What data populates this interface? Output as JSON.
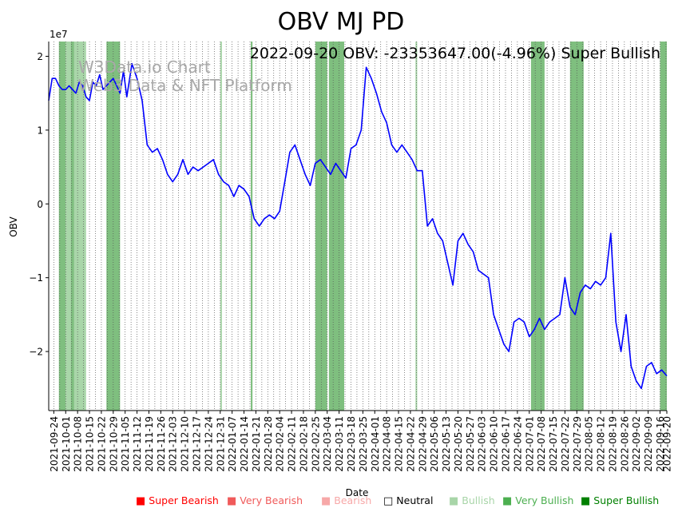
{
  "chart_data": {
    "type": "line",
    "title": "OBV MJ PD",
    "annotation": "2022-09-20 OBV: -23353647.00(-4.96%) Super Bullish",
    "watermark_line1": "W3Data.io Chart",
    "watermark_line2": "Web3 Data & NFT Platform",
    "xlabel": "Date",
    "ylabel": "OBV",
    "y_exponent_label": "1e7",
    "x_range": [
      "2021-09-21",
      "2022-09-20"
    ],
    "ylim": [
      -2.8,
      2.2
    ],
    "y_unit_scale": 10000000,
    "y_ticks": [
      -2,
      -1,
      0,
      1,
      2
    ],
    "y_tick_labels": [
      "−2",
      "−1",
      "0",
      "1",
      "2"
    ],
    "x_tick_labels": [
      "2021-09-24",
      "2021-10-01",
      "2021-10-08",
      "2021-10-15",
      "2021-10-22",
      "2021-10-29",
      "2021-11-05",
      "2021-11-12",
      "2021-11-19",
      "2021-11-26",
      "2021-12-03",
      "2021-12-10",
      "2021-12-17",
      "2021-12-24",
      "2021-12-31",
      "2022-01-07",
      "2022-01-14",
      "2022-01-21",
      "2022-01-28",
      "2022-02-04",
      "2022-02-11",
      "2022-02-18",
      "2022-02-25",
      "2022-03-04",
      "2022-03-11",
      "2022-03-18",
      "2022-03-25",
      "2022-04-01",
      "2022-04-08",
      "2022-04-15",
      "2022-04-22",
      "2022-04-29",
      "2022-05-06",
      "2022-05-13",
      "2022-05-20",
      "2022-05-27",
      "2022-06-03",
      "2022-06-10",
      "2022-06-17",
      "2022-06-24",
      "2022-07-01",
      "2022-07-08",
      "2022-07-15",
      "2022-07-22",
      "2022-07-29",
      "2022-08-05",
      "2022-08-12",
      "2022-08-19",
      "2022-08-26",
      "2022-09-02",
      "2022-09-09",
      "2022-09-16",
      "2022-09-20"
    ],
    "signal_bands": [
      {
        "start": "2021-09-27",
        "end": "2021-10-01",
        "signal": "Very Bullish"
      },
      {
        "start": "2021-10-01",
        "end": "2021-10-04",
        "signal": "Bullish"
      },
      {
        "start": "2021-10-04",
        "end": "2021-10-06",
        "signal": "Very Bullish"
      },
      {
        "start": "2021-10-06",
        "end": "2021-10-13",
        "signal": "Bullish"
      },
      {
        "start": "2021-10-25",
        "end": "2021-11-02",
        "signal": "Very Bullish"
      },
      {
        "start": "2021-12-31",
        "end": "2022-01-01",
        "signal": "Bullish"
      },
      {
        "start": "2022-01-18",
        "end": "2022-01-19",
        "signal": "Very Bullish"
      },
      {
        "start": "2022-02-25",
        "end": "2022-03-04",
        "signal": "Very Bullish"
      },
      {
        "start": "2022-03-05",
        "end": "2022-03-14",
        "signal": "Very Bullish"
      },
      {
        "start": "2022-04-25",
        "end": "2022-04-26",
        "signal": "Bullish"
      },
      {
        "start": "2022-07-02",
        "end": "2022-07-10",
        "signal": "Very Bullish"
      },
      {
        "start": "2022-07-25",
        "end": "2022-08-02",
        "signal": "Very Bullish"
      },
      {
        "start": "2022-09-16",
        "end": "2022-09-20",
        "signal": "Very Bullish"
      }
    ],
    "series": [
      {
        "name": "OBV",
        "color": "#0000ff",
        "dates": [
          "2021-09-21",
          "2021-09-23",
          "2021-09-25",
          "2021-09-27",
          "2021-09-29",
          "2021-10-01",
          "2021-10-03",
          "2021-10-05",
          "2021-10-07",
          "2021-10-09",
          "2021-10-11",
          "2021-10-13",
          "2021-10-15",
          "2021-10-17",
          "2021-10-19",
          "2021-10-21",
          "2021-10-23",
          "2021-10-25",
          "2021-10-27",
          "2021-10-29",
          "2021-10-31",
          "2021-11-02",
          "2021-11-04",
          "2021-11-06",
          "2021-11-09",
          "2021-11-12",
          "2021-11-15",
          "2021-11-18",
          "2021-11-21",
          "2021-11-24",
          "2021-11-27",
          "2021-11-30",
          "2021-12-03",
          "2021-12-06",
          "2021-12-09",
          "2021-12-12",
          "2021-12-15",
          "2021-12-18",
          "2021-12-21",
          "2021-12-24",
          "2021-12-27",
          "2021-12-30",
          "2022-01-02",
          "2022-01-05",
          "2022-01-08",
          "2022-01-11",
          "2022-01-14",
          "2022-01-17",
          "2022-01-20",
          "2022-01-23",
          "2022-01-26",
          "2022-01-29",
          "2022-02-01",
          "2022-02-04",
          "2022-02-07",
          "2022-02-10",
          "2022-02-13",
          "2022-02-16",
          "2022-02-19",
          "2022-02-22",
          "2022-02-25",
          "2022-02-28",
          "2022-03-03",
          "2022-03-06",
          "2022-03-09",
          "2022-03-12",
          "2022-03-15",
          "2022-03-18",
          "2022-03-21",
          "2022-03-24",
          "2022-03-27",
          "2022-03-30",
          "2022-04-02",
          "2022-04-05",
          "2022-04-08",
          "2022-04-11",
          "2022-04-14",
          "2022-04-17",
          "2022-04-20",
          "2022-04-23",
          "2022-04-26",
          "2022-04-29",
          "2022-05-02",
          "2022-05-05",
          "2022-05-08",
          "2022-05-11",
          "2022-05-14",
          "2022-05-17",
          "2022-05-20",
          "2022-05-23",
          "2022-05-26",
          "2022-05-29",
          "2022-06-01",
          "2022-06-04",
          "2022-06-07",
          "2022-06-10",
          "2022-06-13",
          "2022-06-16",
          "2022-06-19",
          "2022-06-22",
          "2022-06-25",
          "2022-06-28",
          "2022-07-01",
          "2022-07-04",
          "2022-07-07",
          "2022-07-10",
          "2022-07-13",
          "2022-07-16",
          "2022-07-19",
          "2022-07-22",
          "2022-07-25",
          "2022-07-28",
          "2022-07-31",
          "2022-08-03",
          "2022-08-06",
          "2022-08-09",
          "2022-08-12",
          "2022-08-15",
          "2022-08-18",
          "2022-08-21",
          "2022-08-24",
          "2022-08-27",
          "2022-08-30",
          "2022-09-02",
          "2022-09-05",
          "2022-09-08",
          "2022-09-11",
          "2022-09-14",
          "2022-09-17",
          "2022-09-20"
        ],
        "values": [
          1.4,
          1.7,
          1.7,
          1.6,
          1.55,
          1.55,
          1.6,
          1.55,
          1.5,
          1.65,
          1.6,
          1.45,
          1.4,
          1.65,
          1.6,
          1.75,
          1.55,
          1.6,
          1.65,
          1.7,
          1.6,
          1.5,
          1.8,
          1.45,
          1.9,
          1.7,
          1.4,
          0.8,
          0.7,
          0.75,
          0.6,
          0.4,
          0.3,
          0.4,
          0.6,
          0.4,
          0.5,
          0.45,
          0.5,
          0.55,
          0.6,
          0.4,
          0.3,
          0.25,
          0.1,
          0.25,
          0.2,
          0.1,
          -0.2,
          -0.3,
          -0.2,
          -0.15,
          -0.2,
          -0.1,
          0.3,
          0.7,
          0.8,
          0.6,
          0.4,
          0.25,
          0.55,
          0.6,
          0.5,
          0.4,
          0.55,
          0.45,
          0.35,
          0.75,
          0.8,
          1.0,
          1.85,
          1.7,
          1.5,
          1.25,
          1.1,
          0.8,
          0.7,
          0.8,
          0.7,
          0.6,
          0.45,
          0.45,
          -0.3,
          -0.2,
          -0.4,
          -0.5,
          -0.8,
          -1.1,
          -0.5,
          -0.4,
          -0.55,
          -0.65,
          -0.9,
          -0.95,
          -1.0,
          -1.5,
          -1.7,
          -1.9,
          -2.0,
          -1.6,
          -1.55,
          -1.6,
          -1.8,
          -1.7,
          -1.55,
          -1.7,
          -1.6,
          -1.55,
          -1.5,
          -1.0,
          -1.4,
          -1.5,
          -1.2,
          -1.1,
          -1.15,
          -1.05,
          -1.1,
          -1.0,
          -0.4,
          -1.6,
          -2.0,
          -1.5,
          -2.2,
          -2.4,
          -2.5,
          -2.2,
          -2.15,
          -2.3,
          -2.25,
          -2.33
        ]
      }
    ],
    "legend": [
      {
        "label": "Super Bearish",
        "color": "#ff0000"
      },
      {
        "label": "Very Bearish",
        "color": "#f05a5a"
      },
      {
        "label": "Bearish",
        "color": "#f7a8a8"
      },
      {
        "label": "Neutral",
        "color": "#000000"
      },
      {
        "label": "Bullish",
        "color": "#a8d5a8"
      },
      {
        "label": "Very Bullish",
        "color": "#4caf50"
      },
      {
        "label": "Super Bullish",
        "color": "#008000"
      }
    ],
    "legend_square_filled": "■",
    "legend_square_empty": "□"
  }
}
